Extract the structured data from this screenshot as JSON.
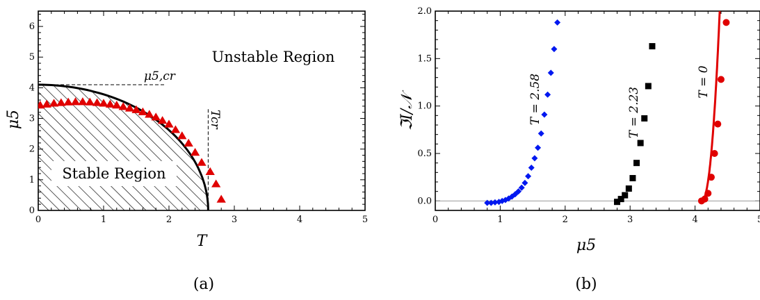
{
  "chart_data": [
    {
      "type": "scatter",
      "caption": "(a)",
      "xlabel": "T",
      "ylabel": "μ5",
      "xlim": [
        0,
        5
      ],
      "ylim": [
        0,
        6.5
      ],
      "xticks": [
        "0",
        "1",
        "2",
        "3",
        "4",
        "5"
      ],
      "yticks": [
        "0",
        "1",
        "2",
        "3",
        "4",
        "5",
        "6"
      ],
      "annotations": {
        "unstable": "Unstable Region",
        "stable": "Stable Region",
        "mu_cr": "μ5,cr",
        "t_cr": "Tcr"
      },
      "boundary": {
        "mu5_cr": 4.1,
        "T_cr": 2.6,
        "shape": "quarter-ellipse, hatched inside"
      },
      "series": [
        {
          "marker": "triangle",
          "color": "#e00000",
          "x": [
            0.03,
            0.13,
            0.24,
            0.35,
            0.46,
            0.57,
            0.68,
            0.79,
            0.9,
            1.0,
            1.1,
            1.2,
            1.3,
            1.4,
            1.5,
            1.6,
            1.7,
            1.8,
            1.9,
            2.0,
            2.1,
            2.2,
            2.3,
            2.4,
            2.5,
            2.63,
            2.72,
            2.8
          ],
          "y": [
            3.42,
            3.45,
            3.48,
            3.5,
            3.52,
            3.53,
            3.53,
            3.52,
            3.5,
            3.48,
            3.45,
            3.42,
            3.37,
            3.32,
            3.27,
            3.2,
            3.12,
            3.03,
            2.92,
            2.8,
            2.62,
            2.42,
            2.18,
            1.88,
            1.55,
            1.25,
            0.85,
            0.35
          ]
        }
      ]
    },
    {
      "type": "scatter",
      "caption": "(b)",
      "xlabel": "μ5",
      "ylabel": "ℑI/𝒩",
      "xlim": [
        0,
        5
      ],
      "ylim": [
        -0.1,
        2.0
      ],
      "xticks": [
        "0",
        "1",
        "2",
        "3",
        "4",
        "5"
      ],
      "yticks": [
        "0.0",
        "0.5",
        "1.0",
        "1.5",
        "2.0"
      ],
      "series": [
        {
          "name": "T = 2.58",
          "marker": "diamond",
          "color": "#0018f0",
          "x": [
            0.8,
            0.86,
            0.92,
            0.98,
            1.03,
            1.08,
            1.13,
            1.18,
            1.23,
            1.28,
            1.33,
            1.38,
            1.43,
            1.48,
            1.53,
            1.58,
            1.63,
            1.68,
            1.73,
            1.78,
            1.83,
            1.88
          ],
          "y": [
            -0.02,
            -0.02,
            -0.015,
            -0.01,
            0.0,
            0.01,
            0.025,
            0.045,
            0.07,
            0.1,
            0.14,
            0.19,
            0.26,
            0.35,
            0.45,
            0.56,
            0.71,
            0.91,
            1.12,
            1.35,
            1.6,
            1.88
          ]
        },
        {
          "name": "T = 2.23",
          "marker": "square",
          "color": "#000000",
          "x": [
            2.8,
            2.86,
            2.92,
            2.98,
            3.04,
            3.1,
            3.16,
            3.22,
            3.28,
            3.34
          ],
          "y": [
            -0.01,
            0.02,
            0.06,
            0.13,
            0.24,
            0.4,
            0.61,
            0.87,
            1.21,
            1.63
          ]
        },
        {
          "name": "T = 0",
          "marker": "circle",
          "color": "#e00000",
          "x": [
            4.1,
            4.15,
            4.2,
            4.25,
            4.3,
            4.35,
            4.4,
            4.48
          ],
          "y": [
            0.0,
            0.02,
            0.08,
            0.25,
            0.5,
            0.81,
            1.28,
            1.88
          ]
        }
      ],
      "reference_line": {
        "y": 0,
        "color": "#999999"
      },
      "curve": {
        "name": "T = 0",
        "color": "#e00000",
        "x_start": 4.1,
        "x_end": 4.38,
        "y_end": 2.0
      }
    }
  ]
}
